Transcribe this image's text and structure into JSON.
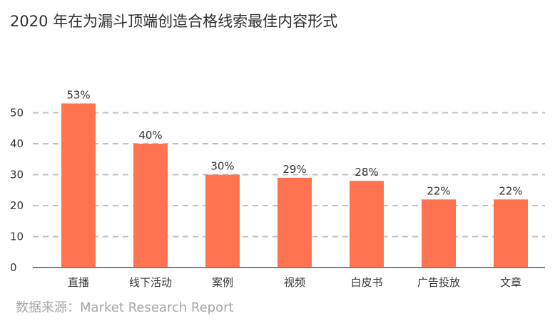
{
  "chart_data": {
    "type": "bar",
    "title": "2020 年在为漏斗顶端创造合格线索最佳内容形式",
    "categories": [
      "直播",
      "线下活动",
      "案例",
      "视频",
      "白皮书",
      "广告投放",
      "文章"
    ],
    "values": [
      53,
      40,
      30,
      29,
      28,
      22,
      22
    ],
    "value_labels": [
      "53%",
      "40%",
      "30%",
      "29%",
      "28%",
      "22%",
      "22%"
    ],
    "y_ticks": [
      "0",
      "10",
      "20",
      "30",
      "40",
      "50"
    ],
    "y_tick_values": [
      0,
      10,
      20,
      30,
      40,
      50
    ],
    "ylim": [
      0,
      55
    ],
    "grid": true,
    "bar_color": "#FF7350",
    "grid_color": "#bfbfbf",
    "axis_color": "#808080"
  },
  "source": "数据来源：Market Research Report"
}
